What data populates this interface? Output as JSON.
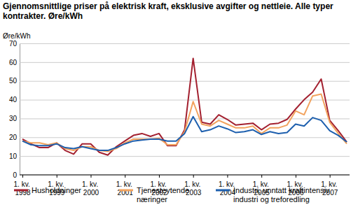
{
  "chart_data": {
    "type": "line",
    "title": "Gjennomsnittlige priser på elektrisk kraft, eksklusive avgifter og nettleie. Alle typer kontrakter. Øre/kWh",
    "y_label": "Øre/kWh",
    "categories": [
      "1. kv. 1998",
      null,
      null,
      null,
      "1. kv. 1999",
      null,
      null,
      null,
      "1. kv. 2000",
      null,
      null,
      null,
      "1. kv. 2001",
      null,
      null,
      null,
      "1. kv. 2002",
      null,
      null,
      null,
      "1. kv. 2003",
      null,
      null,
      null,
      "1. kv. 2004",
      null,
      null,
      null,
      "1. kv. 2005",
      null,
      null,
      null,
      "1. kv. 2006",
      null,
      null,
      null,
      "1. kv. 2007",
      null,
      null
    ],
    "series": [
      {
        "name": "Husholdninger",
        "color": "#a3202f",
        "values": [
          19,
          16.5,
          14.5,
          14.5,
          17,
          13,
          11,
          16.5,
          16.5,
          12,
          10.5,
          15,
          18,
          21,
          22,
          20.5,
          22,
          15.5,
          15.5,
          24,
          62,
          28,
          27,
          32,
          29.5,
          26.5,
          27,
          27.5,
          24,
          27,
          27.5,
          29.5,
          35,
          40,
          44,
          51,
          29,
          23.5,
          17.5
        ]
      },
      {
        "name": "Tjenesteytende næringer",
        "color": "#f2a35e",
        "values": [
          18,
          17,
          17,
          16,
          17,
          14,
          13,
          15,
          15,
          13,
          12.5,
          14,
          17,
          19,
          19,
          19,
          19.5,
          16,
          16,
          23,
          39,
          27,
          26,
          29,
          27,
          25,
          25,
          26,
          22,
          25,
          25,
          26.5,
          34,
          32,
          42,
          43,
          28,
          22,
          16.5
        ]
      },
      {
        "name": "Industri, unntatt kraftintensiv industri og treforedling",
        "color": "#1d5fae",
        "values": [
          18,
          16,
          15.5,
          15.5,
          16.5,
          14.5,
          14,
          15,
          14,
          13,
          13,
          14.5,
          16.5,
          18,
          18.5,
          19,
          19,
          18,
          18,
          22,
          31,
          23,
          24,
          26,
          24.5,
          22.5,
          23,
          24,
          21.5,
          23,
          22,
          22.5,
          27,
          26,
          30.5,
          29,
          23.5,
          21,
          17.5
        ]
      }
    ],
    "ylim": [
      0,
      70
    ],
    "yticks": [
      0,
      10,
      20,
      30,
      40,
      50,
      60,
      70
    ],
    "grid": true,
    "legend": "bottom"
  }
}
